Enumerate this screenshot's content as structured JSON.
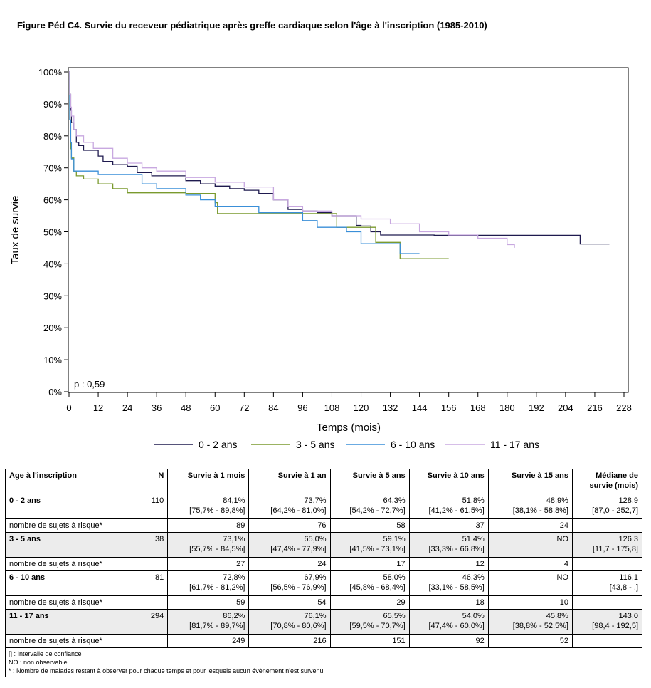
{
  "title": "Figure Péd C4. Survie du receveur pédiatrique après greffe cardiaque selon l'âge à l'inscription (1985-2010)",
  "chart_data": {
    "type": "line",
    "step": true,
    "xlabel": "Temps (mois)",
    "ylabel": "Taux de survie",
    "xlim": [
      0,
      228
    ],
    "ylim": [
      0,
      100
    ],
    "x_ticks": [
      "0",
      "12",
      "24",
      "36",
      "48",
      "60",
      "72",
      "84",
      "96",
      "108",
      "120",
      "132",
      "144",
      "156",
      "168",
      "180",
      "192",
      "204",
      "216",
      "228"
    ],
    "y_ticks": [
      "0%",
      "10%",
      "20%",
      "30%",
      "40%",
      "50%",
      "60%",
      "70%",
      "80%",
      "90%",
      "100%"
    ],
    "annotation": "p : 0,59",
    "legend_position": "bottom",
    "grid": false,
    "series": [
      {
        "name": "0 - 2 ans",
        "color": "#1f1a4f",
        "points": [
          [
            0,
            100
          ],
          [
            0.3,
            93
          ],
          [
            0.7,
            88
          ],
          [
            1,
            84.1
          ],
          [
            2,
            82
          ],
          [
            3,
            78
          ],
          [
            4,
            77
          ],
          [
            6,
            75.5
          ],
          [
            12,
            73.7
          ],
          [
            14,
            72
          ],
          [
            18,
            71
          ],
          [
            24,
            70.5
          ],
          [
            28,
            68.5
          ],
          [
            32,
            68.5
          ],
          [
            34,
            67.5
          ],
          [
            40,
            67.5
          ],
          [
            48,
            66
          ],
          [
            54,
            65
          ],
          [
            60,
            64.3
          ],
          [
            66,
            63.5
          ],
          [
            72,
            63
          ],
          [
            78,
            62
          ],
          [
            84,
            60
          ],
          [
            90,
            57
          ],
          [
            96,
            56.5
          ],
          [
            102,
            56
          ],
          [
            108,
            55
          ],
          [
            114,
            55
          ],
          [
            118,
            52
          ],
          [
            120,
            51.8
          ],
          [
            124,
            50
          ],
          [
            128,
            49
          ],
          [
            150,
            48.9
          ],
          [
            180,
            48.9
          ],
          [
            204,
            48.9
          ],
          [
            210,
            46.2
          ],
          [
            222,
            46.2
          ]
        ]
      },
      {
        "name": "3 - 5 ans",
        "color": "#7a9a2e",
        "points": [
          [
            0,
            100
          ],
          [
            0.3,
            85
          ],
          [
            0.7,
            76
          ],
          [
            1,
            73.1
          ],
          [
            2,
            69
          ],
          [
            3,
            67.5
          ],
          [
            6,
            66.5
          ],
          [
            12,
            65
          ],
          [
            18,
            63.5
          ],
          [
            24,
            62.2
          ],
          [
            36,
            62.2
          ],
          [
            48,
            62
          ],
          [
            60,
            59.1
          ],
          [
            61,
            55.7
          ],
          [
            72,
            55.7
          ],
          [
            84,
            55.7
          ],
          [
            108,
            55.7
          ],
          [
            110,
            51.4
          ],
          [
            120,
            51.4
          ],
          [
            126,
            46.7
          ],
          [
            132,
            46.7
          ],
          [
            136,
            41.6
          ],
          [
            156,
            41.6
          ]
        ]
      },
      {
        "name": "6 - 10 ans",
        "color": "#3a8fd8",
        "points": [
          [
            0,
            100
          ],
          [
            0.3,
            85
          ],
          [
            0.7,
            78
          ],
          [
            1,
            72.8
          ],
          [
            2,
            69
          ],
          [
            6,
            69
          ],
          [
            12,
            67.9
          ],
          [
            24,
            67.9
          ],
          [
            30,
            65
          ],
          [
            36,
            63.5
          ],
          [
            48,
            61.5
          ],
          [
            54,
            60
          ],
          [
            60,
            58
          ],
          [
            72,
            58
          ],
          [
            78,
            56
          ],
          [
            84,
            56
          ],
          [
            96,
            53.5
          ],
          [
            102,
            51.4
          ],
          [
            108,
            51.4
          ],
          [
            114,
            50
          ],
          [
            120,
            46.3
          ],
          [
            132,
            46.3
          ],
          [
            136,
            43.2
          ],
          [
            144,
            43.2
          ]
        ]
      },
      {
        "name": "11 - 17 ans",
        "color": "#c8a8e0",
        "points": [
          [
            0,
            100
          ],
          [
            0.3,
            93
          ],
          [
            0.7,
            89
          ],
          [
            1,
            86.2
          ],
          [
            2,
            82
          ],
          [
            3,
            80
          ],
          [
            6,
            78
          ],
          [
            10,
            76.1
          ],
          [
            12,
            76.1
          ],
          [
            18,
            73
          ],
          [
            24,
            71.5
          ],
          [
            30,
            70
          ],
          [
            36,
            69
          ],
          [
            48,
            67
          ],
          [
            60,
            65.5
          ],
          [
            72,
            64
          ],
          [
            84,
            60
          ],
          [
            90,
            58
          ],
          [
            96,
            56.5
          ],
          [
            108,
            55
          ],
          [
            120,
            54
          ],
          [
            132,
            52.5
          ],
          [
            144,
            50
          ],
          [
            156,
            49
          ],
          [
            168,
            48
          ],
          [
            180,
            46
          ],
          [
            183,
            45
          ]
        ]
      }
    ]
  },
  "table": {
    "headers": [
      "Age à l'inscription",
      "N",
      "Survie à 1 mois",
      "Survie à 1 an",
      "Survie à 5 ans",
      "Survie à 10 ans",
      "Survie à 15 ans",
      "Médiane de survie (mois)"
    ],
    "groups": [
      {
        "label": "0 - 2 ans",
        "n": "110",
        "cells": [
          [
            "84,1%",
            "[75,7% - 89,8%]"
          ],
          [
            "73,7%",
            "[64,2% - 81,0%]"
          ],
          [
            "64,3%",
            "[54,2% - 72,7%]"
          ],
          [
            "51,8%",
            "[41,2% - 61,5%]"
          ],
          [
            "48,9%",
            "[38,1% - 58,8%]"
          ],
          [
            "128,9",
            "[87,0 - 252,7]"
          ]
        ],
        "risk_label": "nombre de sujets à risque*",
        "risk": [
          "89",
          "76",
          "58",
          "37",
          "24",
          ""
        ]
      },
      {
        "label": "3 - 5 ans",
        "n": "38",
        "cells": [
          [
            "73,1%",
            "[55,7% - 84,5%]"
          ],
          [
            "65,0%",
            "[47,4% - 77,9%]"
          ],
          [
            "59,1%",
            "[41,5% - 73,1%]"
          ],
          [
            "51,4%",
            "[33,3% - 66,8%]"
          ],
          [
            "NO",
            ""
          ],
          [
            "126,3",
            "[11,7 - 175,8]"
          ]
        ],
        "risk_label": "nombre de sujets à risque*",
        "risk": [
          "27",
          "24",
          "17",
          "12",
          "4",
          ""
        ]
      },
      {
        "label": "6 - 10 ans",
        "n": "81",
        "cells": [
          [
            "72,8%",
            "[61,7% - 81,2%]"
          ],
          [
            "67,9%",
            "[56,5% - 76,9%]"
          ],
          [
            "58,0%",
            "[45,8% - 68,4%]"
          ],
          [
            "46,3%",
            "[33,1% - 58,5%]"
          ],
          [
            "NO",
            ""
          ],
          [
            "116,1",
            "[43,8 - .]"
          ]
        ],
        "risk_label": "nombre de sujets à risque*",
        "risk": [
          "59",
          "54",
          "29",
          "18",
          "10",
          ""
        ]
      },
      {
        "label": "11 - 17 ans",
        "n": "294",
        "cells": [
          [
            "86,2%",
            "[81,7% - 89,7%]"
          ],
          [
            "76,1%",
            "[70,8% - 80,6%]"
          ],
          [
            "65,5%",
            "[59,5% - 70,7%]"
          ],
          [
            "54,0%",
            "[47,4% - 60,0%]"
          ],
          [
            "45,8%",
            "[38,8% - 52,5%]"
          ],
          [
            "143,0",
            "[98,4 - 192,5]"
          ]
        ],
        "risk_label": "nombre de sujets à risque*",
        "risk": [
          "249",
          "216",
          "151",
          "92",
          "52",
          ""
        ]
      }
    ],
    "notes": [
      "[] : Intervalle de confiance",
      "NO : non observable",
      "* : Nombre de malades restant à observer pour chaque temps et pour lesquels aucun évènement n'est survenu"
    ]
  }
}
